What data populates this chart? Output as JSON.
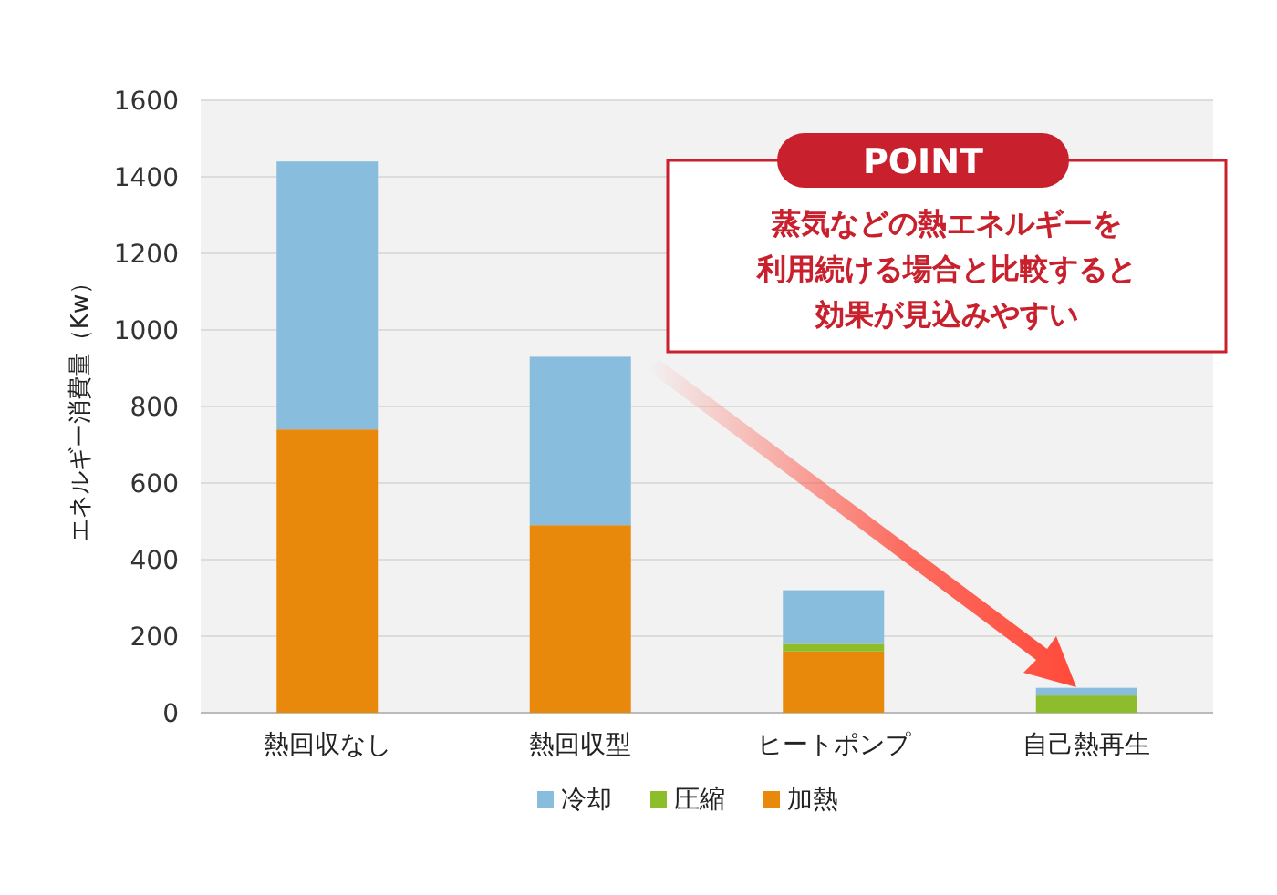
{
  "chart_data": {
    "type": "bar",
    "stacked": true,
    "ylabel": "エネルギー消費量（Kw）",
    "categories": [
      "熱回収なし",
      "熱回収型",
      "ヒートポンプ",
      "自己熱再生"
    ],
    "series": [
      {
        "name": "加熱",
        "color": "#e8890c",
        "values": [
          740,
          490,
          160,
          0
        ]
      },
      {
        "name": "圧縮",
        "color": "#8dbd2a",
        "values": [
          0,
          0,
          20,
          45
        ]
      },
      {
        "name": "冷却",
        "color": "#88bddd",
        "values": [
          700,
          440,
          140,
          20
        ]
      }
    ],
    "ylim": [
      0,
      1600
    ],
    "yticks": [
      0,
      200,
      400,
      600,
      800,
      1000,
      1200,
      1400,
      1600
    ],
    "grid": "y",
    "legend": "bottom",
    "annotations": [
      "POINT",
      "蒸気などの熱エネルギーを",
      "利用続ける場合と比較すると",
      "効果が見込みやすい"
    ]
  }
}
